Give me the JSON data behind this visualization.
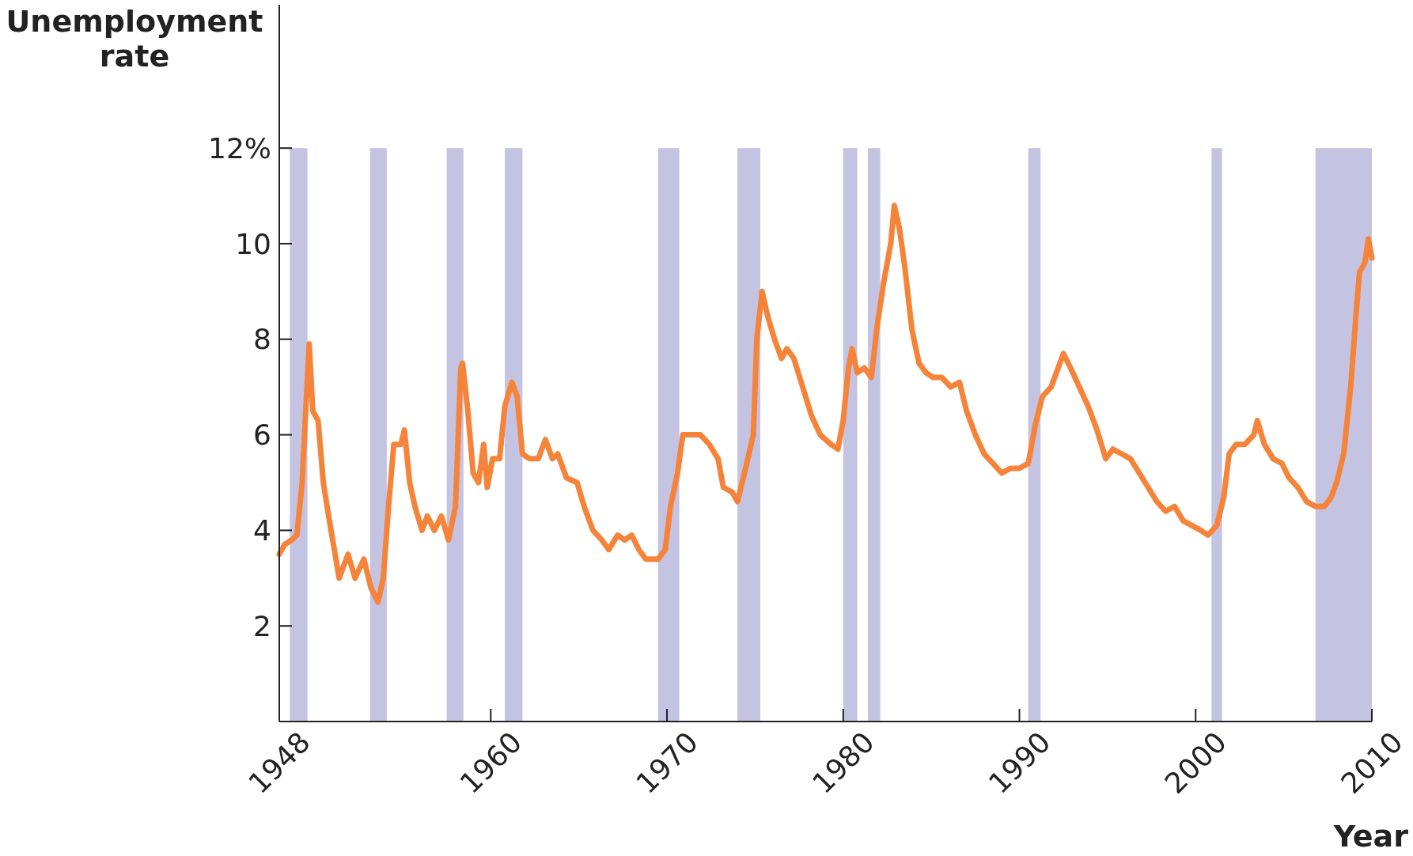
{
  "chart_data": {
    "type": "line",
    "xlabel": "Year",
    "ylabel": "Unemployment rate",
    "xlim": [
      1948,
      2010
    ],
    "xticks": [
      1948,
      1960,
      1970,
      1980,
      1990,
      2000,
      2010
    ],
    "ylim": [
      0,
      15
    ],
    "yticks": [
      {
        "value": 0,
        "label": null
      },
      2,
      4,
      6,
      8,
      10,
      {
        "value": 12,
        "label": "12%"
      }
    ],
    "grid": false,
    "bands": [
      {
        "axis": "x",
        "from": 1948.6,
        "to": 1949.6,
        "color": "#c5c3e2"
      },
      {
        "axis": "x",
        "from": 1953.15,
        "to": 1954.1,
        "color": "#c5c3e2"
      },
      {
        "axis": "x",
        "from": 1957.5,
        "to": 1958.45,
        "color": "#c5c3e2"
      },
      {
        "axis": "x",
        "from": 1960.8,
        "to": 1961.8,
        "color": "#c5c3e2"
      },
      {
        "axis": "x",
        "from": 1969.5,
        "to": 1970.7,
        "color": "#c5c3e2"
      },
      {
        "axis": "x",
        "from": 1974.0,
        "to": 1975.3,
        "color": "#c5c3e2"
      },
      {
        "axis": "x",
        "from": 1980.0,
        "to": 1980.8,
        "color": "#c5c3e2"
      },
      {
        "axis": "x",
        "from": 1981.4,
        "to": 1982.1,
        "color": "#c5c3e2"
      },
      {
        "axis": "x",
        "from": 1990.5,
        "to": 1991.2,
        "color": "#c5c3e2"
      },
      {
        "axis": "x",
        "from": 2000.9,
        "to": 2001.5,
        "color": "#c5c3e2"
      },
      {
        "axis": "x",
        "from": 2006.8,
        "to": 2010,
        "color": "#c5c3e2"
      }
    ],
    "series": [
      {
        "color": "#f5843a",
        "line_style": "solid",
        "marker": "none",
        "x": [
          1948.0,
          1948.3,
          1948.7,
          1949.0,
          1949.3,
          1949.5,
          1949.7,
          1949.9,
          1950.2,
          1950.5,
          1950.8,
          1951.4,
          1951.9,
          1952.3,
          1952.8,
          1953.2,
          1953.6,
          1953.9,
          1954.2,
          1954.5,
          1954.9,
          1955.1,
          1955.4,
          1955.7,
          1956.1,
          1956.4,
          1956.8,
          1957.2,
          1957.6,
          1958.0,
          1958.3,
          1958.4,
          1958.7,
          1959.0,
          1959.3,
          1959.6,
          1959.8,
          1960.1,
          1960.5,
          1960.8,
          1961.2,
          1961.5,
          1961.8,
          1962.2,
          1962.7,
          1963.1,
          1963.5,
          1963.8,
          1964.3,
          1964.9,
          1965.3,
          1965.8,
          1966.3,
          1966.7,
          1967.2,
          1967.6,
          1968.0,
          1968.4,
          1968.8,
          1969.5,
          1969.9,
          1970.2,
          1970.6,
          1970.9,
          1971.4,
          1971.9,
          1972.4,
          1972.9,
          1973.2,
          1973.7,
          1974.0,
          1974.4,
          1974.9,
          1975.1,
          1975.4,
          1975.7,
          1976.1,
          1976.5,
          1976.8,
          1977.2,
          1977.7,
          1978.2,
          1978.7,
          1979.3,
          1979.7,
          1980.0,
          1980.3,
          1980.5,
          1980.8,
          1981.2,
          1981.6,
          1981.9,
          1982.3,
          1982.7,
          1982.9,
          1983.2,
          1983.5,
          1983.9,
          1984.3,
          1984.7,
          1985.1,
          1985.6,
          1986.1,
          1986.6,
          1987.0,
          1987.5,
          1988.0,
          1988.5,
          1989.0,
          1989.5,
          1990.0,
          1990.5,
          1990.9,
          1991.3,
          1991.8,
          1992.3,
          1992.5,
          1992.9,
          1993.4,
          1993.9,
          1994.4,
          1994.9,
          1995.3,
          1995.8,
          1996.3,
          1996.8,
          1997.3,
          1997.8,
          1998.3,
          1998.8,
          1999.3,
          1999.8,
          2000.3,
          2000.7,
          2001.2,
          2001.6,
          2001.9,
          2002.3,
          2002.8,
          2003.3,
          2003.5,
          2003.9,
          2004.4,
          2004.9,
          2005.3,
          2005.8,
          2006.3,
          2006.8,
          2007.3,
          2007.7,
          2008.0,
          2008.4,
          2008.8,
          2009.1,
          2009.3,
          2009.6,
          2009.8,
          2010.0
        ],
        "values": [
          3.5,
          3.7,
          3.8,
          3.9,
          5.0,
          6.5,
          7.9,
          6.5,
          6.3,
          5.0,
          4.3,
          3.0,
          3.5,
          3.0,
          3.4,
          2.8,
          2.5,
          3.0,
          4.5,
          5.8,
          5.8,
          6.1,
          5.0,
          4.5,
          4.0,
          4.3,
          4.0,
          4.3,
          3.8,
          4.5,
          7.4,
          7.5,
          6.5,
          5.2,
          5.0,
          5.8,
          4.9,
          5.5,
          5.5,
          6.6,
          7.1,
          6.8,
          5.6,
          5.5,
          5.5,
          5.9,
          5.5,
          5.6,
          5.1,
          5.0,
          4.5,
          4.0,
          3.8,
          3.6,
          3.9,
          3.8,
          3.9,
          3.6,
          3.4,
          3.4,
          3.6,
          4.5,
          5.2,
          6.0,
          6.0,
          6.0,
          5.8,
          5.5,
          4.9,
          4.8,
          4.6,
          5.2,
          6.0,
          8.0,
          9.0,
          8.5,
          8.0,
          7.6,
          7.8,
          7.6,
          7.0,
          6.4,
          6.0,
          5.8,
          5.7,
          6.3,
          7.4,
          7.8,
          7.3,
          7.4,
          7.2,
          8.2,
          9.2,
          10.0,
          10.8,
          10.3,
          9.5,
          8.2,
          7.5,
          7.3,
          7.2,
          7.2,
          7.0,
          7.1,
          6.5,
          6.0,
          5.6,
          5.4,
          5.2,
          5.3,
          5.3,
          5.4,
          6.2,
          6.8,
          7.0,
          7.5,
          7.7,
          7.4,
          7.0,
          6.6,
          6.1,
          5.5,
          5.7,
          5.6,
          5.5,
          5.2,
          4.9,
          4.6,
          4.4,
          4.5,
          4.2,
          4.1,
          4.0,
          3.9,
          4.1,
          4.7,
          5.6,
          5.8,
          5.8,
          6.0,
          6.3,
          5.8,
          5.5,
          5.4,
          5.1,
          4.9,
          4.6,
          4.5,
          4.5,
          4.7,
          5.0,
          5.6,
          7.0,
          8.5,
          9.4,
          9.6,
          10.1,
          9.7
        ]
      }
    ]
  }
}
